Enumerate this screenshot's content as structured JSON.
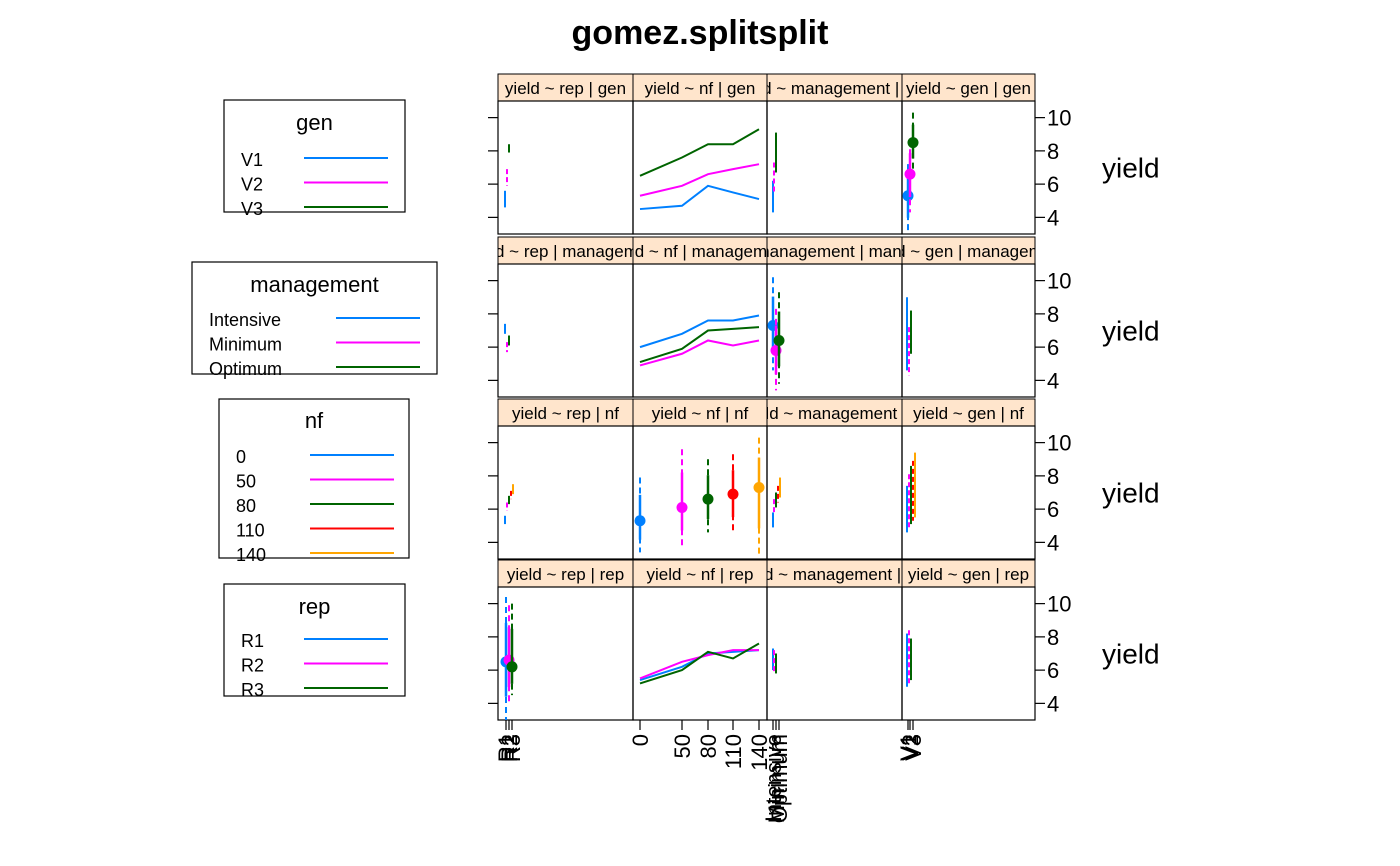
{
  "chart_data": {
    "type": "line",
    "title": "gomez.splitsplit",
    "ylabel": "yield",
    "ylim": [
      3,
      11
    ],
    "yticks": [
      4,
      6,
      8,
      10
    ],
    "colors": [
      "#0080ff",
      "#ff00ff",
      "#006400",
      "#ff0000",
      "#ffa500"
    ],
    "strip_fill": "#ffe5cc",
    "legends": [
      {
        "title": "gen",
        "items": [
          "V1",
          "V2",
          "V3"
        ]
      },
      {
        "title": "management",
        "items": [
          "Intensive",
          "Minimum",
          "Optimum"
        ]
      },
      {
        "title": "nf",
        "items": [
          "0",
          "50",
          "80",
          "110",
          "140"
        ]
      },
      {
        "title": "rep",
        "items": [
          "R1",
          "R2",
          "R3"
        ]
      }
    ],
    "columns": [
      {
        "factor": "rep",
        "ticks": [
          "R1",
          "R2",
          "R3"
        ]
      },
      {
        "factor": "nf",
        "ticks": [
          "0",
          "50",
          "80",
          "110",
          "140"
        ]
      },
      {
        "factor": "management",
        "ticks": [
          "Intensive",
          "Minimum",
          "Optimum"
        ]
      },
      {
        "factor": "gen",
        "ticks": [
          "V1",
          "V2",
          "V3"
        ]
      }
    ],
    "rows": [
      {
        "group": "gen",
        "strips": [
          "yield ~ rep | gen",
          "yield ~ nf | gen",
          "yield ~ management | gen",
          "yield ~ gen | gen"
        ],
        "nf_series": [
          {
            "name": "V1",
            "values": [
              4.5,
              4.7,
              5.9,
              5.5,
              5.1
            ]
          },
          {
            "name": "V2",
            "values": [
              5.3,
              5.9,
              6.6,
              6.9,
              7.2
            ]
          },
          {
            "name": "V3",
            "values": [
              6.5,
              7.6,
              8.4,
              8.4,
              9.3
            ]
          }
        ],
        "rep_ranges": [
          {
            "lo": 4.6,
            "hi": 5.6
          },
          {
            "lo": 5.9,
            "hi": 6.9
          },
          {
            "lo": 7.9,
            "hi": 8.4
          }
        ],
        "mgmt_ranges": [
          {
            "lo": 4.3,
            "hi": 6.2
          },
          {
            "lo": 5.4,
            "hi": 7.3
          },
          {
            "lo": 6.7,
            "hi": 9.1
          }
        ],
        "gen_means": [
          {
            "name": "V1",
            "mean": 5.3,
            "lo": 3.1,
            "hi": 7.2
          },
          {
            "name": "V2",
            "mean": 6.6,
            "lo": 4.3,
            "hi": 8.7
          },
          {
            "name": "V3",
            "mean": 8.5,
            "lo": 6.9,
            "hi": 10.3
          }
        ]
      },
      {
        "group": "management",
        "strips": [
          "yield ~ rep | management",
          "yield ~ nf | management",
          "yield ~ management | management",
          "yield ~ gen | management"
        ],
        "nf_series": [
          {
            "name": "Intensive",
            "values": [
              6.0,
              6.8,
              7.6,
              7.6,
              7.9
            ]
          },
          {
            "name": "Minimum",
            "values": [
              4.9,
              5.6,
              6.4,
              6.1,
              6.4
            ]
          },
          {
            "name": "Optimum",
            "values": [
              5.1,
              5.9,
              7.0,
              7.1,
              7.2
            ]
          }
        ],
        "rep_ranges": [
          {
            "lo": 6.8,
            "hi": 7.4
          },
          {
            "lo": 5.7,
            "hi": 6.3
          },
          {
            "lo": 6.1,
            "hi": 6.7
          }
        ],
        "mgmt_means": [
          {
            "name": "Intensive",
            "mean": 7.3,
            "lo": 4.6,
            "hi": 10.2
          },
          {
            "name": "Minimum",
            "mean": 5.8,
            "lo": 3.4,
            "hi": 8.3
          },
          {
            "name": "Optimum",
            "mean": 6.4,
            "lo": 3.8,
            "hi": 9.3
          }
        ],
        "gen_ranges": [
          {
            "lo": 4.6,
            "hi": 9.0
          },
          {
            "lo": 4.3,
            "hi": 7.2
          },
          {
            "lo": 5.6,
            "hi": 8.2
          }
        ]
      },
      {
        "group": "nf",
        "strips": [
          "yield ~ rep | nf",
          "yield ~ nf | nf",
          "yield ~ management | nf",
          "yield ~ gen | nf"
        ],
        "nf_means": [
          {
            "name": "0",
            "mean": 5.3,
            "lo": 3.4,
            "hi": 7.9
          },
          {
            "name": "50",
            "mean": 6.1,
            "lo": 3.8,
            "hi": 9.6
          },
          {
            "name": "80",
            "mean": 6.6,
            "lo": 4.6,
            "hi": 9.0
          },
          {
            "name": "110",
            "mean": 6.9,
            "lo": 4.6,
            "hi": 9.3
          },
          {
            "name": "140",
            "mean": 7.3,
            "lo": 3.2,
            "hi": 10.3
          }
        ],
        "rep_ranges": [
          {
            "lo": 5.1,
            "hi": 5.6
          },
          {
            "lo": 5.9,
            "hi": 6.4
          },
          {
            "lo": 6.3,
            "hi": 6.8
          },
          {
            "lo": 6.6,
            "hi": 7.1
          },
          {
            "lo": 6.9,
            "hi": 7.5
          }
        ],
        "mgmt_ranges": [
          {
            "lo": 4.9,
            "hi": 5.8
          },
          {
            "lo": 5.7,
            "hi": 6.6
          },
          {
            "lo": 6.1,
            "hi": 7.0
          },
          {
            "lo": 6.4,
            "hi": 7.4
          },
          {
            "lo": 6.7,
            "hi": 7.9
          }
        ],
        "gen_ranges": [
          {
            "lo": 4.6,
            "hi": 7.4
          },
          {
            "lo": 4.9,
            "hi": 8.1
          },
          {
            "lo": 5.1,
            "hi": 8.6
          },
          {
            "lo": 5.3,
            "hi": 8.9
          },
          {
            "lo": 5.5,
            "hi": 9.4
          }
        ]
      },
      {
        "group": "rep",
        "strips": [
          "yield ~ rep | rep",
          "yield ~ nf | rep",
          "yield ~ management | rep",
          "yield ~ gen | rep"
        ],
        "nf_series": [
          {
            "name": "R1",
            "values": [
              5.4,
              6.2,
              7.0,
              7.1,
              7.2
            ]
          },
          {
            "name": "R2",
            "values": [
              5.5,
              6.5,
              6.9,
              7.2,
              7.2
            ]
          },
          {
            "name": "R3",
            "values": [
              5.2,
              6.0,
              7.1,
              6.7,
              7.6
            ]
          }
        ],
        "rep_means": [
          {
            "name": "R1",
            "mean": 6.5,
            "lo": 3.0,
            "hi": 10.4
          },
          {
            "name": "R2",
            "mean": 6.6,
            "lo": 3.9,
            "hi": 9.9
          },
          {
            "name": "R3",
            "mean": 6.2,
            "lo": 4.5,
            "hi": 10.0
          }
        ],
        "mgmt_ranges": [
          {
            "lo": 6.0,
            "hi": 7.3
          },
          {
            "lo": 5.9,
            "hi": 7.2
          },
          {
            "lo": 5.8,
            "hi": 7.0
          }
        ],
        "gen_ranges": [
          {
            "lo": 5.0,
            "hi": 8.2
          },
          {
            "lo": 5.2,
            "hi": 8.4
          },
          {
            "lo": 5.4,
            "hi": 7.9
          }
        ]
      }
    ]
  }
}
